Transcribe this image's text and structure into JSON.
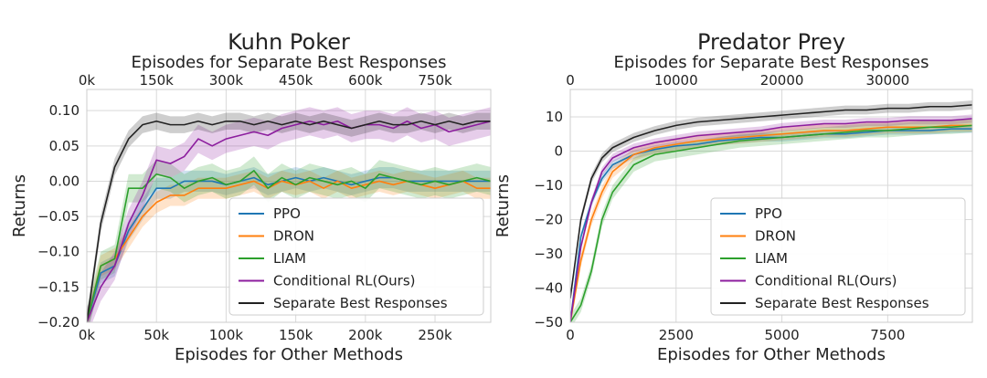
{
  "chart_data": [
    {
      "type": "line",
      "title": "Kuhn Poker",
      "xlabel": "Episodes for Other Methods",
      "ylabel": "Returns",
      "top_xlabel": "Episodes for Separate Best Responses",
      "xlim": [
        0,
        290000
      ],
      "ylim": [
        -0.2,
        0.13
      ],
      "xticks": [
        0,
        50000,
        100000,
        150000,
        200000,
        250000
      ],
      "xtick_labels": [
        "0k",
        "50k",
        "100k",
        "150k",
        "200k",
        "250k"
      ],
      "yticks": [
        -0.2,
        -0.15,
        -0.1,
        -0.05,
        0.0,
        0.05,
        0.1
      ],
      "ytick_labels": [
        "−0.20",
        "−0.15",
        "−0.10",
        "−0.05",
        "0.00",
        "0.05",
        "0.10"
      ],
      "top_xlim": [
        0,
        870000
      ],
      "top_xticks": [
        0,
        150000,
        300000,
        450000,
        600000,
        750000
      ],
      "top_xtick_labels": [
        "0k",
        "150k",
        "300k",
        "450k",
        "600k",
        "750k"
      ],
      "grid": true,
      "legend_position": "lower-right",
      "x": [
        0,
        10000,
        20000,
        30000,
        40000,
        50000,
        60000,
        70000,
        80000,
        90000,
        100000,
        110000,
        120000,
        130000,
        140000,
        150000,
        160000,
        170000,
        180000,
        190000,
        200000,
        210000,
        220000,
        230000,
        240000,
        250000,
        260000,
        270000,
        280000,
        290000
      ],
      "series": [
        {
          "name": "PPO",
          "color": "#1f77b4",
          "band": 0.015,
          "values": [
            -0.2,
            -0.13,
            -0.12,
            -0.07,
            -0.04,
            -0.01,
            -0.01,
            0.0,
            0.0,
            0.0,
            -0.005,
            0.0,
            0.005,
            -0.005,
            0.0,
            0.005,
            0.0,
            0.005,
            0.0,
            -0.005,
            0.0,
            0.005,
            0.005,
            0.0,
            0.0,
            0.0,
            0.0,
            0.0,
            0.0,
            0.0
          ]
        },
        {
          "name": "DRON",
          "color": "#ff7f0e",
          "band": 0.015,
          "values": [
            -0.2,
            -0.12,
            -0.11,
            -0.08,
            -0.05,
            -0.03,
            -0.02,
            -0.02,
            -0.01,
            -0.01,
            -0.01,
            -0.005,
            0.0,
            -0.01,
            0.0,
            -0.005,
            0.0,
            -0.01,
            0.0,
            -0.01,
            -0.005,
            0.0,
            -0.005,
            0.0,
            -0.005,
            -0.01,
            -0.005,
            0.0,
            -0.01,
            -0.01
          ]
        },
        {
          "name": "LIAM",
          "color": "#2ca02c",
          "band": 0.02,
          "values": [
            -0.2,
            -0.12,
            -0.11,
            -0.01,
            -0.01,
            0.01,
            0.005,
            -0.01,
            0.0,
            0.005,
            -0.005,
            0.0,
            0.015,
            -0.01,
            0.005,
            -0.005,
            0.005,
            0.0,
            -0.005,
            0.0,
            -0.01,
            0.01,
            0.005,
            0.0,
            -0.005,
            0.0,
            -0.005,
            0.0,
            0.005,
            0.0
          ]
        },
        {
          "name": "Conditional RL(Ours)",
          "color": "#8c1d9e",
          "band": 0.02,
          "values": [
            -0.2,
            -0.15,
            -0.12,
            -0.06,
            -0.02,
            0.03,
            0.025,
            0.035,
            0.06,
            0.05,
            0.06,
            0.065,
            0.07,
            0.065,
            0.075,
            0.08,
            0.085,
            0.08,
            0.085,
            0.075,
            0.08,
            0.08,
            0.075,
            0.085,
            0.075,
            0.08,
            0.07,
            0.075,
            0.08,
            0.085
          ]
        },
        {
          "name": "Separate Best Responses",
          "color": "#222222",
          "band": 0.012,
          "values": [
            -0.2,
            -0.06,
            0.02,
            0.06,
            0.08,
            0.085,
            0.08,
            0.08,
            0.085,
            0.08,
            0.085,
            0.085,
            0.08,
            0.085,
            0.08,
            0.085,
            0.08,
            0.085,
            0.08,
            0.075,
            0.08,
            0.085,
            0.08,
            0.08,
            0.085,
            0.08,
            0.085,
            0.08,
            0.085,
            0.085
          ]
        }
      ]
    },
    {
      "type": "line",
      "title": "Predator Prey",
      "xlabel": "Episodes for Other Methods",
      "ylabel": "Returns",
      "top_xlabel": "Episodes for Separate Best Responses",
      "xlim": [
        0,
        9500
      ],
      "ylim": [
        -50,
        18
      ],
      "xticks": [
        0,
        2500,
        5000,
        7500
      ],
      "xtick_labels": [
        "0",
        "2500",
        "5000",
        "7500"
      ],
      "yticks": [
        -50,
        -40,
        -30,
        -20,
        -10,
        0,
        10
      ],
      "ytick_labels": [
        "−50",
        "−40",
        "−30",
        "−20",
        "−10",
        "0",
        "10"
      ],
      "top_xlim": [
        0,
        38000
      ],
      "top_xticks": [
        0,
        10000,
        20000,
        30000
      ],
      "top_xtick_labels": [
        "0",
        "10000",
        "20000",
        "30000"
      ],
      "grid": true,
      "legend_position": "lower-right",
      "x": [
        0,
        250,
        500,
        750,
        1000,
        1500,
        2000,
        2500,
        3000,
        3500,
        4000,
        4500,
        5000,
        5500,
        6000,
        6500,
        7000,
        7500,
        8000,
        8500,
        9000,
        9500
      ],
      "series": [
        {
          "name": "PPO",
          "color": "#1f77b4",
          "band": 1.2,
          "values": [
            -50,
            -25,
            -15,
            -8,
            -4,
            -1,
            0.5,
            1.5,
            2,
            3,
            3.5,
            4,
            4,
            4.5,
            5,
            5,
            5.5,
            6,
            6,
            6,
            6.5,
            6.5
          ]
        },
        {
          "name": "DRON",
          "color": "#ff7f0e",
          "band": 1.8,
          "values": [
            -50,
            -32,
            -20,
            -12,
            -6,
            -1,
            1,
            2,
            3,
            3.5,
            4,
            4.5,
            5,
            5.5,
            6,
            6,
            6.5,
            7,
            7,
            7,
            7.5,
            7.5
          ]
        },
        {
          "name": "LIAM",
          "color": "#2ca02c",
          "band": 2.0,
          "values": [
            -50,
            -45,
            -35,
            -20,
            -12,
            -4,
            -1,
            0,
            1,
            2,
            3,
            3.5,
            4,
            4.5,
            5,
            5.5,
            6,
            6,
            6.5,
            7,
            7,
            7.5
          ]
        },
        {
          "name": "Conditional RL(Ours)",
          "color": "#8c1d9e",
          "band": 1.2,
          "values": [
            -50,
            -28,
            -15,
            -6,
            -2,
            1,
            2.5,
            3.5,
            4.5,
            5,
            5.5,
            6,
            7,
            7.5,
            8,
            8,
            8.5,
            8.5,
            9,
            9,
            9,
            9.5
          ]
        },
        {
          "name": "Separate Best Responses",
          "color": "#222222",
          "band": 1.3,
          "values": [
            -43,
            -20,
            -8,
            -2,
            1,
            4,
            6,
            7.5,
            8.5,
            9,
            9.5,
            10,
            10.5,
            11,
            11.5,
            12,
            12,
            12.5,
            12.5,
            13,
            13,
            13.5
          ]
        }
      ]
    }
  ]
}
